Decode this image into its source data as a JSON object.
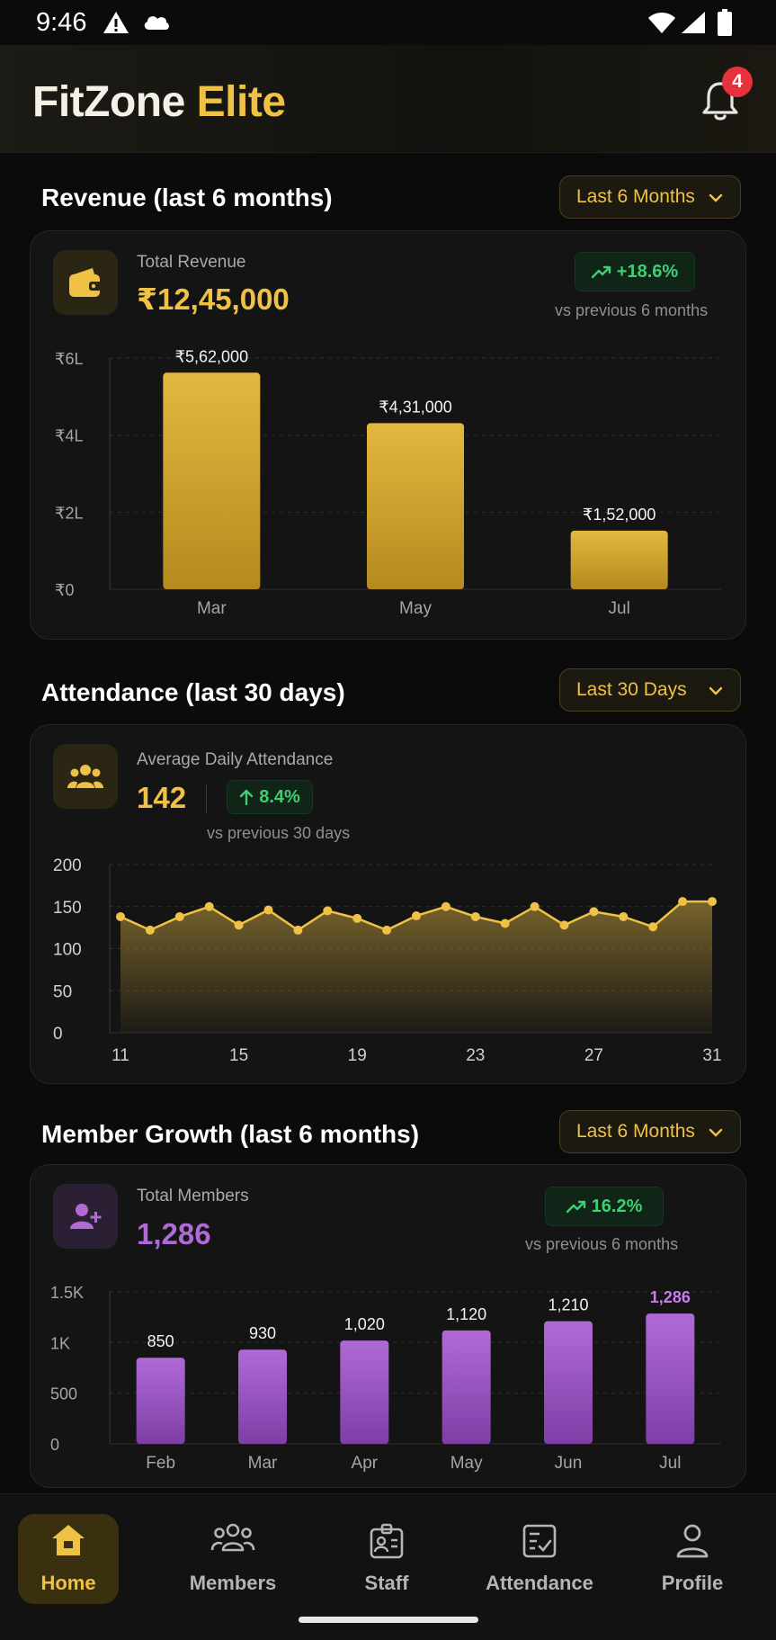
{
  "status_bar": {
    "time": "9:46"
  },
  "app": {
    "title_part1": "FitZone",
    "title_part2": "Elite",
    "notifications_count": "4"
  },
  "colors": {
    "gold": "#efc246",
    "purple": "#b06ad6",
    "green": "#3fcf73",
    "badge_red": "#e5323d"
  },
  "revenue": {
    "section_title": "Revenue (last 6 months)",
    "filter_label": "Last 6 Months",
    "icon": "wallet-icon",
    "label": "Total Revenue",
    "value": "₹12,45,000",
    "change": "+18.6%",
    "vs_text": "vs previous 6 months"
  },
  "attendance": {
    "section_title": "Attendance (last 30 days)",
    "filter_label": "Last 30 Days",
    "icon": "group-icon",
    "label": "Average Daily Attendance",
    "value": "142",
    "change": "8.4%",
    "vs_text": "vs previous 30 days"
  },
  "members": {
    "section_title": "Member Growth (last 6 months)",
    "filter_label": "Last 6 Months",
    "icon": "add-user-icon",
    "label": "Total Members",
    "value": "1,286",
    "change": "16.2%",
    "vs_text": "vs previous 6 months"
  },
  "chart_data": [
    {
      "type": "bar",
      "categories": [
        "Mar",
        "May",
        "Jul"
      ],
      "values": [
        562000,
        431000,
        152000
      ],
      "data_labels": [
        "₹5,62,000",
        "₹4,31,000",
        "₹1,52,000"
      ],
      "yticks": [
        0,
        200000,
        400000,
        600000
      ],
      "ytick_labels": [
        "₹0",
        "₹2L",
        "₹4L",
        "₹6L"
      ],
      "ylim": [
        0,
        600000
      ],
      "grid": true,
      "color": "#e2b43a"
    },
    {
      "type": "area",
      "x": [
        11,
        12,
        13,
        14,
        15,
        16,
        17,
        18,
        19,
        20,
        21,
        22,
        23,
        24,
        25,
        26,
        27,
        28,
        29,
        30,
        31
      ],
      "values": [
        138,
        122,
        138,
        150,
        128,
        146,
        122,
        145,
        136,
        122,
        139,
        150,
        138,
        130,
        150,
        128,
        144,
        138,
        126,
        156,
        156
      ],
      "xtick_labels": [
        "11",
        "15",
        "19",
        "23",
        "27",
        "31"
      ],
      "xticks": [
        11,
        15,
        19,
        23,
        27,
        31
      ],
      "yticks": [
        0,
        50,
        100,
        150,
        200
      ],
      "ytick_labels": [
        "0",
        "50",
        "100",
        "150",
        "200"
      ],
      "ylim": [
        0,
        200
      ],
      "grid": true,
      "color": "#efc246"
    },
    {
      "type": "bar",
      "categories": [
        "Feb",
        "Mar",
        "Apr",
        "May",
        "Jun",
        "Jul"
      ],
      "values": [
        850,
        930,
        1020,
        1120,
        1210,
        1286
      ],
      "data_labels": [
        "850",
        "930",
        "1,020",
        "1,120",
        "1,210",
        "1,286"
      ],
      "yticks": [
        0,
        500,
        1000,
        1500
      ],
      "ytick_labels": [
        "0",
        "500",
        "1K",
        "1.5K"
      ],
      "ylim": [
        0,
        1500
      ],
      "grid": true,
      "color": "#a65fd0",
      "highlight_last": true
    }
  ],
  "bottom_nav": [
    {
      "label": "Home",
      "icon": "home-icon",
      "active": true
    },
    {
      "label": "Members",
      "icon": "members-icon",
      "active": false
    },
    {
      "label": "Staff",
      "icon": "staff-badge-icon",
      "active": false
    },
    {
      "label": "Attendance",
      "icon": "attendance-check-icon",
      "active": false
    },
    {
      "label": "Profile",
      "icon": "profile-icon",
      "active": false
    }
  ]
}
